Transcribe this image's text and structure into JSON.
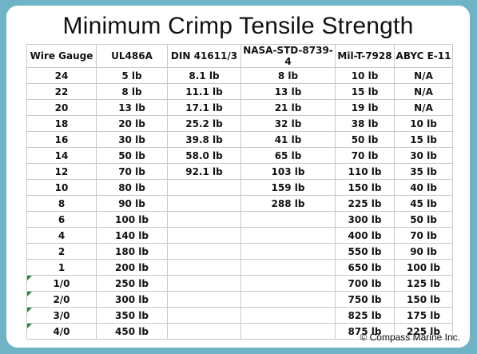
{
  "title": "Minimum Crimp Tensile Strength",
  "headers": [
    "Wire Gauge",
    "UL486A",
    "DIN 41611/3",
    "NASA-STD-8739-4",
    "Mil-T-7928",
    "ABYC E-11"
  ],
  "rows": [
    [
      "24",
      "5 lb",
      "8.1 lb",
      "8 lb",
      "10 lb",
      "N/A"
    ],
    [
      "22",
      "8 lb",
      "11.1 lb",
      "13 lb",
      "15 lb",
      "N/A"
    ],
    [
      "20",
      "13 lb",
      "17.1 lb",
      "21 lb",
      "19 lb",
      "N/A"
    ],
    [
      "18",
      "20 lb",
      "25.2 lb",
      "32 lb",
      "38 lb",
      "10 lb"
    ],
    [
      "16",
      "30 lb",
      "39.8 lb",
      "41 lb",
      "50 lb",
      "15 lb"
    ],
    [
      "14",
      "50 lb",
      "58.0 lb",
      "65 lb",
      "70 lb",
      "30 lb"
    ],
    [
      "12",
      "70 lb",
      "92.1 lb",
      "103 lb",
      "110 lb",
      "35 lb"
    ],
    [
      "10",
      "80 lb",
      "",
      "159 lb",
      "150 lb",
      "40 lb"
    ],
    [
      "8",
      "90 lb",
      "",
      "288 lb",
      "225 lb",
      "45 lb"
    ],
    [
      "6",
      "100 lb",
      "",
      "",
      "300 lb",
      "50 lb"
    ],
    [
      "4",
      "140 lb",
      "",
      "",
      "400 lb",
      "70 lb"
    ],
    [
      "2",
      "180 lb",
      "",
      "",
      "550 lb",
      "90 lb"
    ],
    [
      "1",
      "200 lb",
      "",
      "",
      "650 lb",
      "100 lb"
    ],
    [
      "1/0",
      "250 lb",
      "",
      "",
      "700 lb",
      "125 lb"
    ],
    [
      "2/0",
      "300 lb",
      "",
      "",
      "750 lb",
      "150 lb"
    ],
    [
      "3/0",
      "350 lb",
      "",
      "",
      "825 lb",
      "175 lb"
    ],
    [
      "4/0",
      "450 lb",
      "",
      "",
      "875 lb",
      "225 lb"
    ]
  ],
  "copyright": "© Compass Marine Inc.",
  "colors": {
    "background": "#6fb3c7",
    "card": "#ffffff",
    "grid": "#c9c9c9",
    "marker": "#1e8a3a"
  }
}
